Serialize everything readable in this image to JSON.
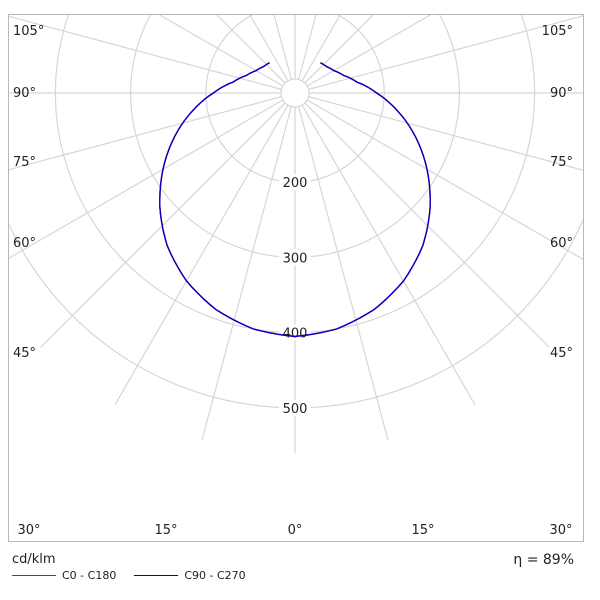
{
  "chart_data": {
    "type": "polar",
    "subtype": "luminous-intensity-distribution",
    "unit": "cd/klm",
    "efficiency": {
      "symbol": "η",
      "value": "89%"
    },
    "radial_axis": {
      "max": 560,
      "step": 100,
      "ticks": [
        200,
        300,
        400,
        500
      ]
    },
    "angle_tick_labels": {
      "bottom": [
        "30°",
        "15°",
        "0°",
        "15°",
        "30°"
      ],
      "left": [
        "45°",
        "60°",
        "75°",
        "90°",
        "105°"
      ],
      "right": [
        "45°",
        "60°",
        "75°",
        "90°",
        "105°"
      ]
    },
    "grid_angle_step_deg": 15,
    "grid": true,
    "legend_placement": "bottom-left",
    "series": [
      {
        "name": "C0 - C180",
        "color": "#ff0000",
        "angles_deg": [
          0,
          10,
          20,
          30,
          40,
          50,
          60,
          70,
          80,
          90,
          100,
          110,
          120,
          130,
          140
        ],
        "values": [
          405,
          400,
          388,
          370,
          346,
          316,
          284,
          252,
          220,
          190,
          165,
          150,
          141,
          136,
          134
        ]
      },
      {
        "name": "C90 - C270",
        "color": "#0000cc",
        "angles_deg": [
          0,
          10,
          20,
          30,
          40,
          50,
          60,
          70,
          80,
          90,
          100,
          110,
          120,
          130,
          140
        ],
        "values": [
          405,
          400,
          388,
          370,
          346,
          316,
          284,
          252,
          220,
          190,
          165,
          150,
          141,
          136,
          134
        ]
      }
    ]
  }
}
